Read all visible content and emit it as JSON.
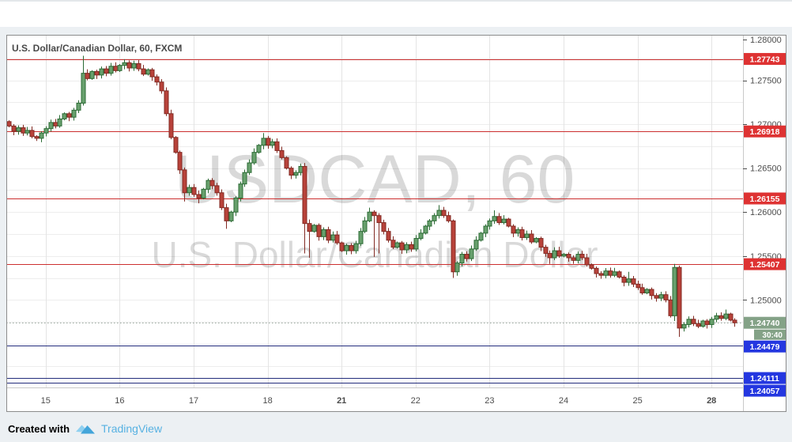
{
  "title": "U.S. Dollar/Canadian Dollar, 60, FXCM",
  "watermark": {
    "line1": "USDCAD, 60",
    "line2": "U.S. Dollar/Canadian Dollar"
  },
  "footer": {
    "created_with": "Created with",
    "brand": "TradingView"
  },
  "colors": {
    "page_bg": "#ffffff",
    "backdrop": "#ecf0f3",
    "panel_border": "#8c8c8c",
    "panel_bg": "#ffffff",
    "grid": "#ededed",
    "day_grid": "#e4e4e4",
    "axis_sep": "#c9c9c9",
    "axis_text": "#4c4c4c",
    "title_text": "#494949",
    "watermark_text": "rgba(0,0,0,0.15)",
    "up_fill": "#68a06d",
    "up_stroke": "#2c6b35",
    "down_fill": "#b8423a",
    "down_stroke": "#822a23",
    "resistance_line": "#cc2f2f",
    "resistance_label_bg": "#de3232",
    "support_line": "#222c7c",
    "support_label_bg": "#2437e0",
    "last_line": "#97a69b",
    "last_label_bg": "#84a287",
    "label_text": "#ffffff",
    "brand_blue": "#56b1e2",
    "logo_light": "#8fd0f0",
    "logo_dark": "#43a5da"
  },
  "chart_data": {
    "type": "candlestick",
    "symbol": "USDCAD",
    "interval": "60",
    "exchange": "FXCM",
    "ylim": [
      1.24,
      1.28
    ],
    "grid_step": 0.0025,
    "y_ticks": [
      {
        "price": 1.28,
        "label": "1.28000"
      },
      {
        "price": 1.275,
        "label": "1.27500"
      },
      {
        "price": 1.27,
        "label": "1.27000"
      },
      {
        "price": 1.265,
        "label": "1.26500"
      },
      {
        "price": 1.26,
        "label": "1.26000"
      },
      {
        "price": 1.255,
        "label": "1.25500"
      },
      {
        "price": 1.25,
        "label": "1.25000"
      }
    ],
    "x_ticks": [
      {
        "slot": 8,
        "label": "15",
        "bold": false
      },
      {
        "slot": 24,
        "label": "16",
        "bold": false
      },
      {
        "slot": 40,
        "label": "17",
        "bold": false
      },
      {
        "slot": 56,
        "label": "18",
        "bold": false
      },
      {
        "slot": 72,
        "label": "21",
        "bold": true
      },
      {
        "slot": 88,
        "label": "22",
        "bold": false
      },
      {
        "slot": 104,
        "label": "23",
        "bold": false
      },
      {
        "slot": 120,
        "label": "24",
        "bold": false
      },
      {
        "slot": 136,
        "label": "25",
        "bold": false
      },
      {
        "slot": 152,
        "label": "28",
        "bold": true
      }
    ],
    "levels": [
      {
        "price": 1.27743,
        "label": "1.27743",
        "group": "resistance"
      },
      {
        "price": 1.26918,
        "label": "1.26918",
        "group": "resistance"
      },
      {
        "price": 1.26155,
        "label": "1.26155",
        "group": "resistance"
      },
      {
        "price": 1.25407,
        "label": "1.25407",
        "group": "resistance"
      },
      {
        "price": 1.24479,
        "label": "1.24479",
        "group": "support"
      },
      {
        "price": 1.24111,
        "label": "1.24111",
        "group": "support"
      },
      {
        "price": 1.24057,
        "label": "1.24057",
        "group": "support"
      }
    ],
    "last_price": {
      "price": 1.2474,
      "label": "1.24740",
      "countdown": "30:40"
    },
    "candles": {
      "first_open": 1.2703,
      "closes": [
        1.2698,
        1.2692,
        1.2696,
        1.269,
        1.2693,
        1.2686,
        1.2684,
        1.269,
        1.2695,
        1.2702,
        1.2698,
        1.2706,
        1.2712,
        1.2708,
        1.2716,
        1.2724,
        1.2758,
        1.2752,
        1.276,
        1.2756,
        1.2763,
        1.2758,
        1.2766,
        1.2761,
        1.2767,
        1.277,
        1.2764,
        1.2769,
        1.2763,
        1.2757,
        1.2762,
        1.2754,
        1.2748,
        1.2738,
        1.2712,
        1.2685,
        1.2668,
        1.2648,
        1.2622,
        1.2628,
        1.262,
        1.2616,
        1.2626,
        1.2636,
        1.263,
        1.2622,
        1.2605,
        1.259,
        1.26,
        1.2616,
        1.2632,
        1.2645,
        1.2656,
        1.2668,
        1.2676,
        1.2684,
        1.2676,
        1.268,
        1.267,
        1.2662,
        1.265,
        1.2642,
        1.2645,
        1.2652,
        1.2587,
        1.2578,
        1.2585,
        1.2572,
        1.258,
        1.2568,
        1.2574,
        1.2565,
        1.2556,
        1.2562,
        1.2556,
        1.2564,
        1.2578,
        1.259,
        1.26,
        1.2596,
        1.2588,
        1.2578,
        1.2568,
        1.256,
        1.2565,
        1.2557,
        1.2563,
        1.2558,
        1.257,
        1.2576,
        1.2584,
        1.259,
        1.2596,
        1.2602,
        1.2596,
        1.259,
        1.2532,
        1.2542,
        1.2552,
        1.2547,
        1.2558,
        1.2568,
        1.2576,
        1.2584,
        1.259,
        1.2595,
        1.2588,
        1.2592,
        1.2584,
        1.2576,
        1.258,
        1.2571,
        1.2575,
        1.2566,
        1.257,
        1.256,
        1.2553,
        1.2548,
        1.2556,
        1.255,
        1.2552,
        1.2548,
        1.2545,
        1.2552,
        1.2548,
        1.254,
        1.2536,
        1.253,
        1.2528,
        1.2533,
        1.2528,
        1.2532,
        1.2526,
        1.252,
        1.2524,
        1.2518,
        1.2514,
        1.2508,
        1.2512,
        1.2505,
        1.2502,
        1.2506,
        1.25,
        1.2482,
        1.2537,
        1.2468,
        1.2472,
        1.2478,
        1.2473,
        1.247,
        1.2476,
        1.2472,
        1.2478,
        1.2482,
        1.2479,
        1.2484,
        1.2477,
        1.2474
      ],
      "wick_overrides": {
        "6": {
          "low": 1.2681
        },
        "16": {
          "high": 1.2778
        },
        "25": {
          "high": 1.2774
        },
        "38": {
          "low": 1.2612
        },
        "41": {
          "low": 1.261
        },
        "47": {
          "low": 1.2581
        },
        "55": {
          "high": 1.269
        },
        "64": {
          "low": 1.2553
        },
        "65": {
          "low": 1.2548
        },
        "78": {
          "high": 1.2605
        },
        "79": {
          "low": 1.2549
        },
        "80": {
          "low": 1.2553
        },
        "93": {
          "high": 1.2608
        },
        "96": {
          "low": 1.2525
        },
        "105": {
          "high": 1.2602
        },
        "117": {
          "low": 1.2541
        },
        "134": {
          "high": 1.2532
        },
        "144": {
          "high": 1.2541,
          "low": 1.2476
        },
        "145": {
          "low": 1.2458
        },
        "155": {
          "high": 1.2489
        }
      }
    }
  }
}
